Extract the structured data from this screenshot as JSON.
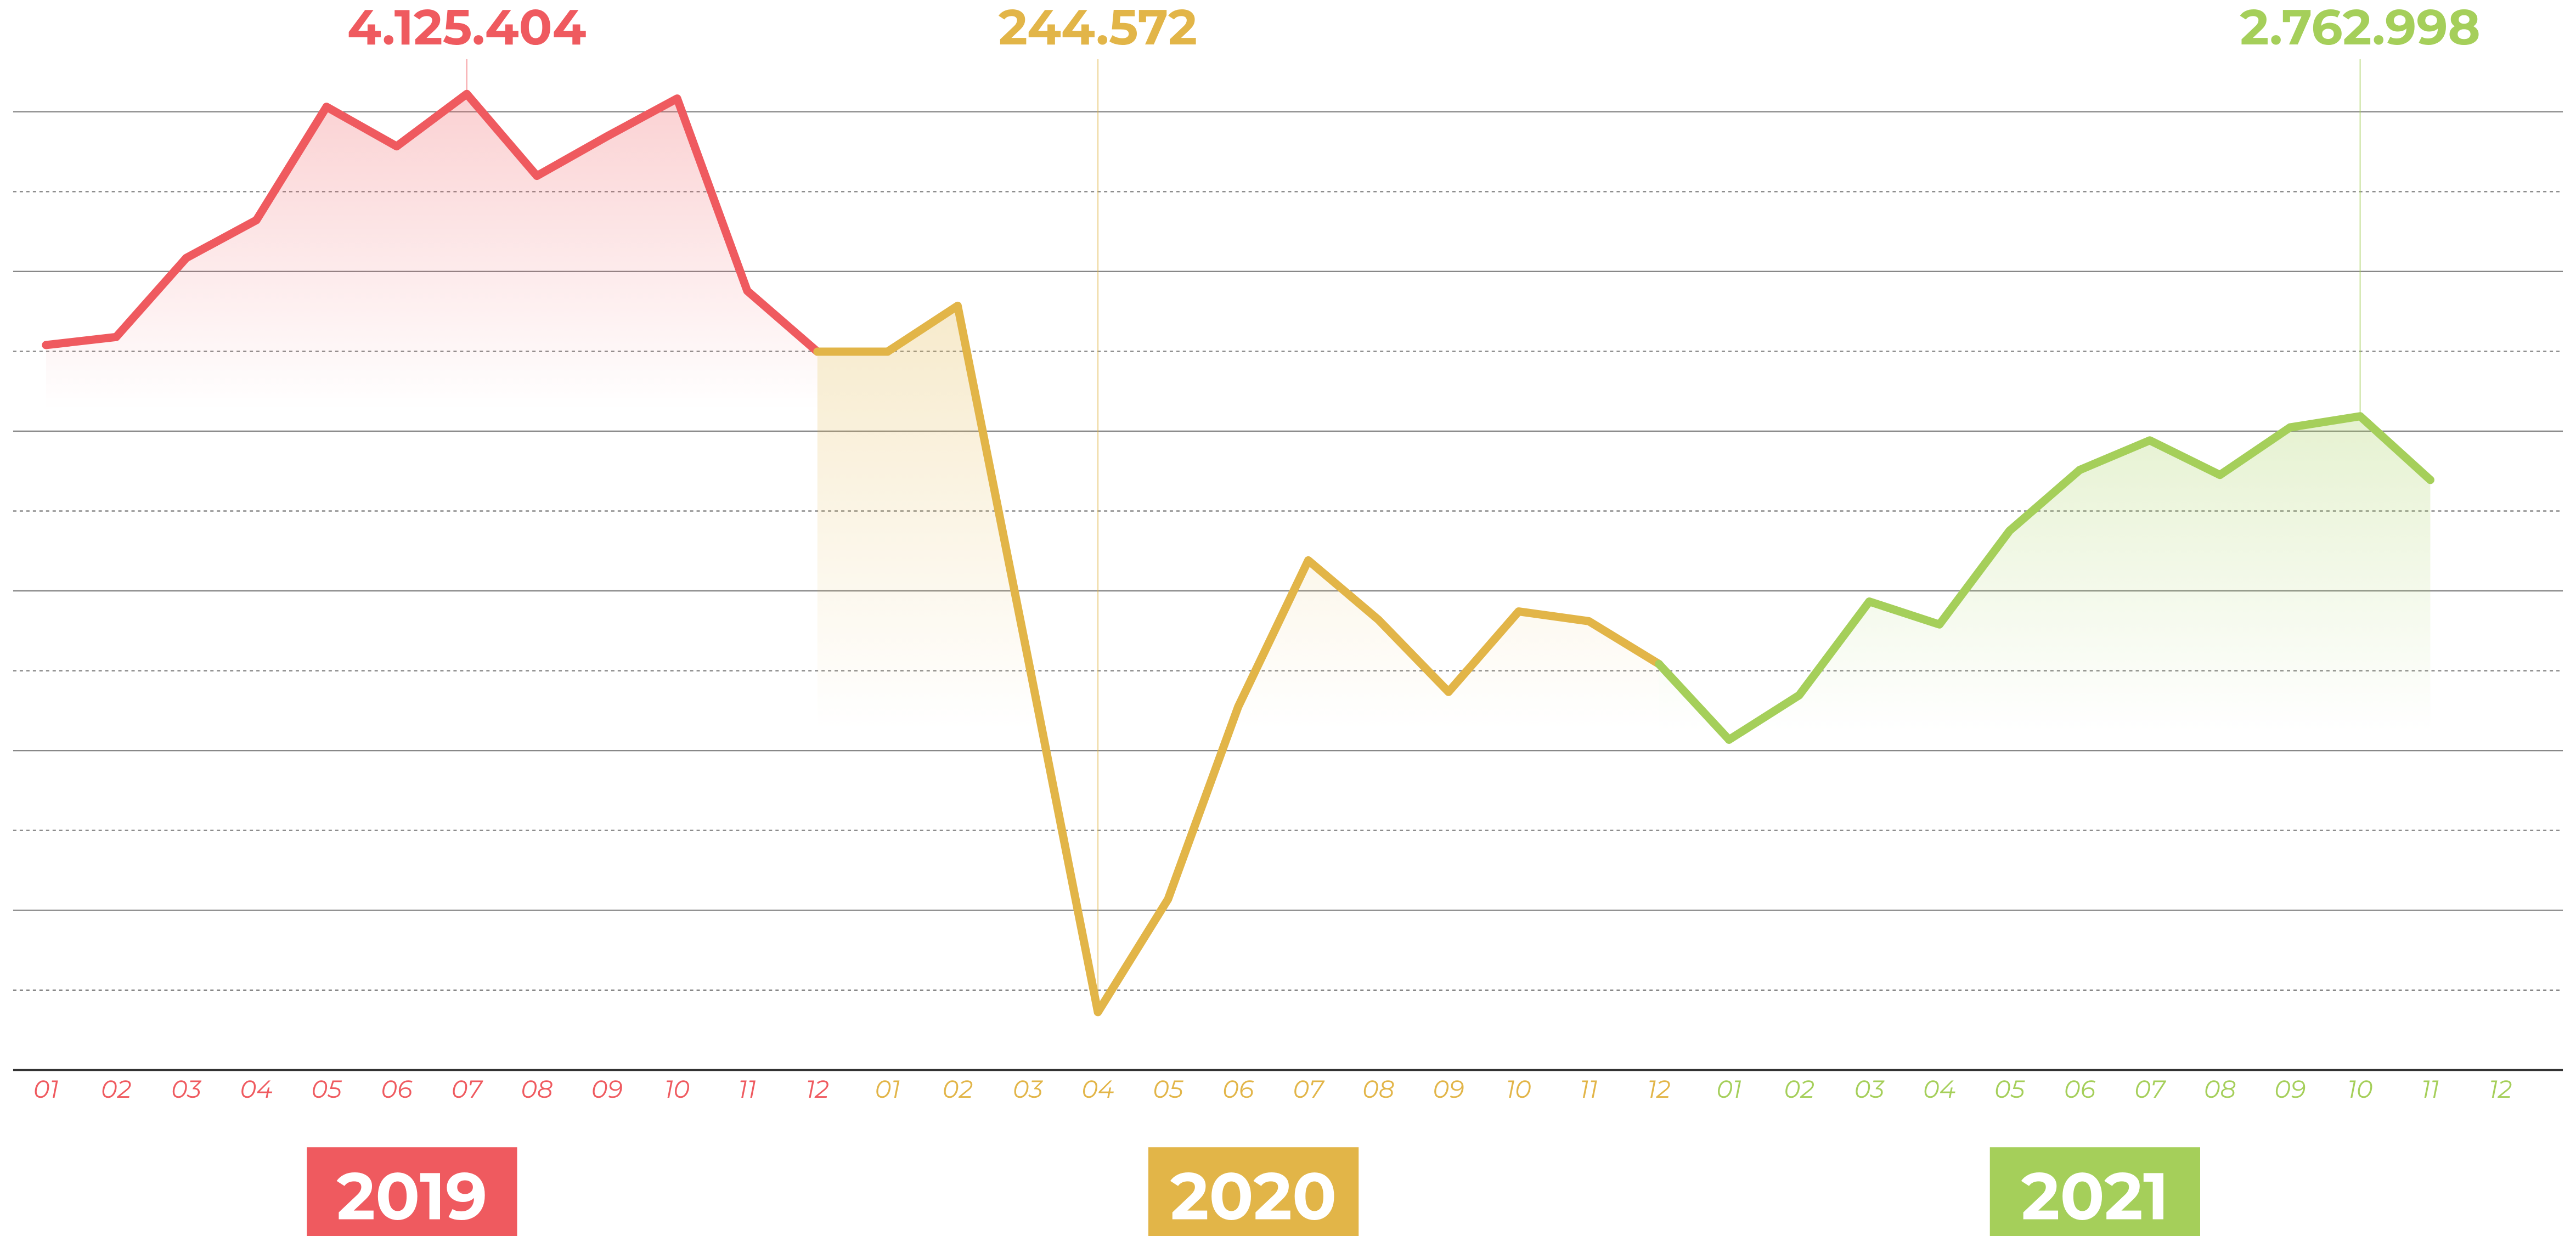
{
  "chart_data": {
    "type": "line",
    "categories": [
      "01",
      "02",
      "03",
      "04",
      "05",
      "06",
      "07",
      "08",
      "09",
      "10",
      "11",
      "12",
      "01",
      "02",
      "03",
      "04",
      "05",
      "06",
      "07",
      "08",
      "09",
      "10",
      "11",
      "12",
      "01",
      "02",
      "03",
      "04",
      "05",
      "06",
      "07",
      "08",
      "09",
      "10",
      "11",
      "12"
    ],
    "series": [
      {
        "name": "2019",
        "color": "#ef5a5f",
        "values": [
          3064000,
          3098000,
          3432000,
          3592000,
          4071000,
          3904000,
          4125404,
          3779000,
          3946000,
          4106000,
          3293000,
          3036000,
          null,
          null,
          null,
          null,
          null,
          null,
          null,
          null,
          null,
          null,
          null,
          null,
          null,
          null,
          null,
          null,
          null,
          null,
          null,
          null,
          null,
          null,
          null,
          null
        ],
        "value_labels": [
          null,
          null,
          null,
          null,
          null,
          null,
          "4.125.404",
          null,
          null,
          null,
          null,
          null,
          null,
          null,
          null,
          null,
          null,
          null,
          null,
          null,
          null,
          null,
          null,
          null,
          null,
          null,
          null,
          null,
          null,
          null,
          null,
          null,
          null,
          null,
          null,
          null
        ]
      },
      {
        "name": "2020",
        "color": "#e2b548",
        "values": [
          null,
          null,
          null,
          null,
          null,
          null,
          null,
          null,
          null,
          null,
          null,
          null,
          3036000,
          3230000,
          1744000,
          244572,
          722000,
          1535000,
          2154000,
          1903000,
          1598000,
          1938000,
          1897000,
          1716000,
          null,
          null,
          null,
          null,
          null,
          null,
          null,
          null,
          null,
          null,
          null,
          null
        ],
        "value_labels": [
          null,
          null,
          null,
          null,
          null,
          null,
          null,
          null,
          null,
          null,
          null,
          null,
          null,
          null,
          null,
          "244.572",
          null,
          null,
          null,
          null,
          null,
          null,
          null,
          null,
          null,
          null,
          null,
          null,
          null,
          null,
          null,
          null,
          null,
          null,
          null,
          null
        ]
      },
      {
        "name": "2021",
        "color": "#a5cf5a",
        "values": [
          null,
          null,
          null,
          null,
          null,
          null,
          null,
          null,
          null,
          null,
          null,
          null,
          null,
          null,
          null,
          null,
          null,
          null,
          null,
          null,
          null,
          null,
          null,
          null,
          1396000,
          1584000,
          1980000,
          1883000,
          2279000,
          2536000,
          2661000,
          2515000,
          2716000,
          2762998,
          2494000,
          null
        ],
        "value_labels": [
          null,
          null,
          null,
          null,
          null,
          null,
          null,
          null,
          null,
          null,
          null,
          null,
          null,
          null,
          null,
          null,
          null,
          null,
          null,
          null,
          null,
          null,
          null,
          null,
          null,
          null,
          null,
          null,
          null,
          null,
          null,
          null,
          null,
          "2.762.998",
          null,
          null
        ]
      }
    ],
    "ylim": [
      0,
      4050000
    ],
    "yticks": [
      0,
      337500,
      675000,
      1012500,
      1350000,
      1687500,
      2025000,
      2362500,
      2700000,
      3037500,
      3375000,
      3712500,
      4050000
    ],
    "grid": true
  }
}
